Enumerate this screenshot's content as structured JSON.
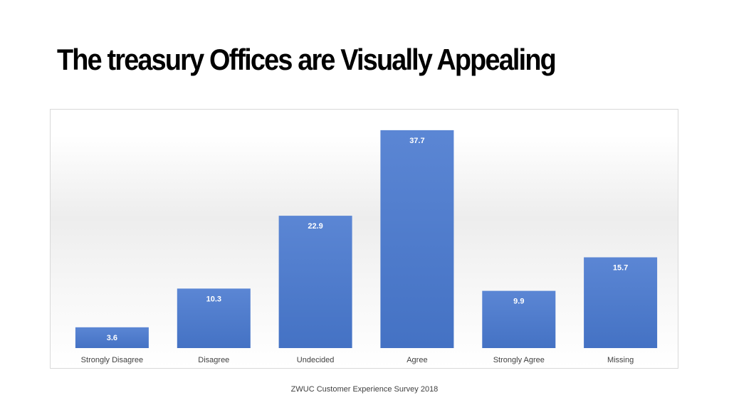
{
  "slide": {
    "title": "The treasury Offices are Visually Appealing",
    "footer": "ZWUC Customer Experience Survey 2018"
  },
  "colors": {
    "bar": "#4472c4",
    "bar_light": "#5b86d4",
    "value_label": "#ffffff",
    "category_label": "#404040"
  },
  "chart_data": {
    "type": "bar",
    "title": "",
    "xlabel": "",
    "ylabel": "",
    "categories": [
      "Strongly Disagree",
      "Disagree",
      "Undecided",
      "Agree",
      "Strongly Agree",
      "Missing"
    ],
    "values": [
      3.6,
      10.3,
      22.9,
      37.7,
      9.9,
      15.7
    ],
    "data_labels": [
      "3.6",
      "10.3",
      "22.9",
      "37.7",
      "9.9",
      "15.7"
    ],
    "ylim": [
      0,
      40
    ],
    "grid": false,
    "legend": "none",
    "y_axis_shown": false,
    "data_labels_position": "inside-top"
  }
}
